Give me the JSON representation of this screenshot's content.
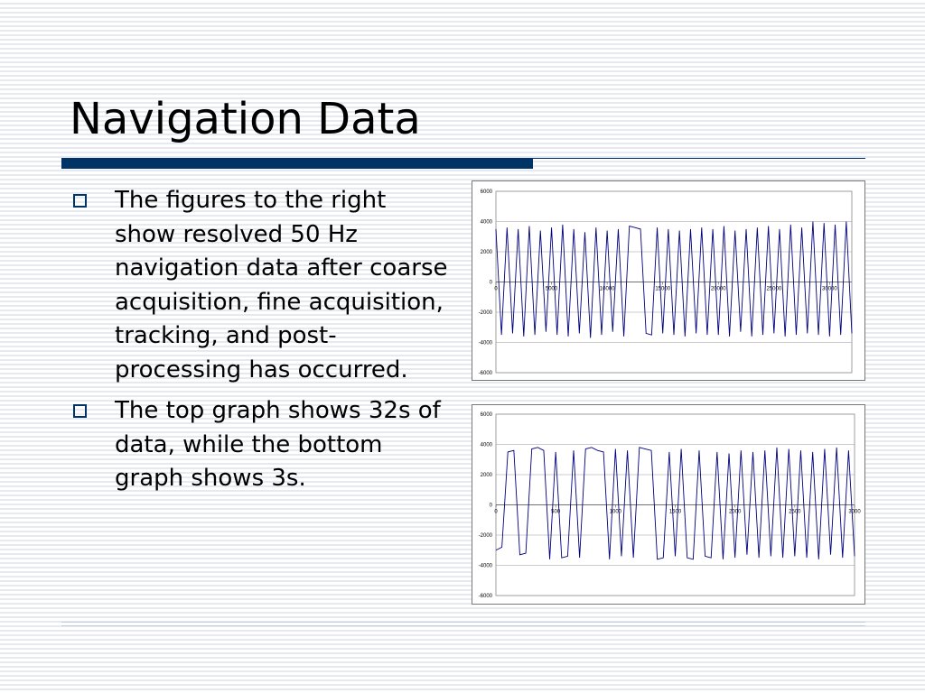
{
  "title": "Navigation Data",
  "bullets": [
    "The figures to the right show resolved 50 Hz navigation data after coarse acquisition, fine acquisition, tracking, and post-processing has occurred.",
    "The top graph shows 32s of data, while the bottom graph shows 3s."
  ],
  "chart_data": [
    {
      "type": "line",
      "color": "#00007f",
      "x": [
        0,
        500,
        1000,
        1500,
        2000,
        2500,
        3000,
        3500,
        4000,
        4500,
        5000,
        5500,
        6000,
        6500,
        7000,
        7500,
        8000,
        8500,
        9000,
        9500,
        10000,
        10500,
        11000,
        11500,
        12000,
        12500,
        13000,
        13500,
        14000,
        14500,
        15000,
        15500,
        16000,
        16500,
        17000,
        17500,
        18000,
        18500,
        19000,
        19500,
        20000,
        20500,
        21000,
        21500,
        22000,
        22500,
        23000,
        23500,
        24000,
        24500,
        25000,
        25500,
        26000,
        26500,
        27000,
        27500,
        28000,
        28500,
        29000,
        29500,
        30000,
        30500,
        31000,
        31500,
        32000
      ],
      "values": [
        3500,
        -3500,
        3600,
        -3400,
        3500,
        -3600,
        3700,
        -3500,
        3400,
        -3300,
        3600,
        -3500,
        3800,
        -3600,
        3500,
        -3400,
        3300,
        -3700,
        3600,
        -3500,
        3400,
        -3300,
        3500,
        -3600,
        3700,
        3600,
        3500,
        -3400,
        -3500,
        3600,
        -3400,
        3500,
        -3500,
        3400,
        -3600,
        3500,
        -3400,
        3600,
        -3500,
        3500,
        -3500,
        3700,
        -3600,
        3400,
        -3300,
        3500,
        -3600,
        3600,
        -3500,
        3700,
        -3400,
        3500,
        -3600,
        3800,
        -3500,
        3600,
        -3400,
        4000,
        -3500,
        3900,
        -3600,
        3800,
        -3500,
        4000,
        -3400
      ],
      "xlim": [
        0,
        32000
      ],
      "ylim": [
        -6000,
        6000
      ],
      "xticks": [
        0,
        5000,
        10000,
        15000,
        20000,
        25000,
        30000
      ],
      "yticks": [
        6000,
        4000,
        2000,
        0,
        -2000,
        -4000,
        -6000
      ],
      "grid": true
    },
    {
      "type": "line",
      "color": "#00007f",
      "x": [
        0,
        50,
        100,
        150,
        200,
        250,
        300,
        350,
        400,
        450,
        500,
        550,
        600,
        650,
        700,
        750,
        800,
        850,
        900,
        950,
        1000,
        1050,
        1100,
        1150,
        1200,
        1250,
        1300,
        1350,
        1400,
        1450,
        1500,
        1550,
        1600,
        1650,
        1700,
        1750,
        1800,
        1850,
        1900,
        1950,
        2000,
        2050,
        2100,
        2150,
        2200,
        2250,
        2300,
        2350,
        2400,
        2450,
        2500,
        2550,
        2600,
        2650,
        2700,
        2750,
        2800,
        2850,
        2900,
        2950,
        3000
      ],
      "values": [
        -3000,
        -2800,
        3500,
        3600,
        -3300,
        -3200,
        3700,
        3800,
        3600,
        -3600,
        3500,
        -3500,
        -3400,
        3600,
        -3500,
        3700,
        3800,
        3600,
        3500,
        -3600,
        3700,
        -3400,
        3600,
        -3500,
        3800,
        3700,
        3600,
        -3600,
        -3500,
        3500,
        -3400,
        3700,
        -3500,
        -3600,
        3600,
        -3400,
        -3500,
        3500,
        -3600,
        3400,
        -3500,
        3600,
        -3300,
        3500,
        -3500,
        3600,
        -3400,
        3800,
        -3500,
        3700,
        -3400,
        3600,
        -3500,
        3500,
        -3600,
        3700,
        -3300,
        3800,
        -3500,
        3600,
        -3400
      ],
      "xlim": [
        0,
        3000
      ],
      "ylim": [
        -6000,
        6000
      ],
      "xticks": [
        0,
        500,
        1000,
        1500,
        2000,
        2500,
        3000
      ],
      "yticks": [
        6000,
        4000,
        2000,
        0,
        -2000,
        -4000,
        -6000
      ],
      "grid": true
    }
  ]
}
